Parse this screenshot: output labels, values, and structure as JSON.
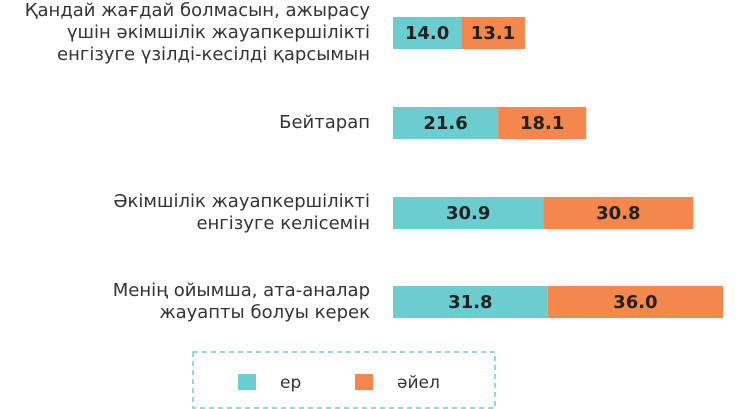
{
  "chart_data": {
    "type": "stacked-bar-horizontal",
    "categories": [
      "Қандай жағдай болмасын, ажырасу\nүшін әкімшілік жауапкершілікті\nенгізуге үзілді-кесілді қарсымын",
      "Бейтарап",
      "Әкімшілік жауапкершілікті\nенгізуге келісемін",
      "Менің ойымша, ата-аналар\nжауапты болуы керек"
    ],
    "series": [
      {
        "name": "ер",
        "color": "#6ccdd1",
        "values": [
          14.0,
          21.6,
          30.9,
          31.8
        ],
        "value_labels": [
          "14.0",
          "21.6",
          "30.9",
          "31.8"
        ]
      },
      {
        "name": "әйел",
        "color": "#f4874b",
        "values": [
          13.1,
          18.1,
          30.8,
          36.0
        ],
        "value_labels": [
          "13.1",
          "18.1",
          "30.8",
          "36.0"
        ]
      }
    ],
    "legend": "bottom"
  }
}
